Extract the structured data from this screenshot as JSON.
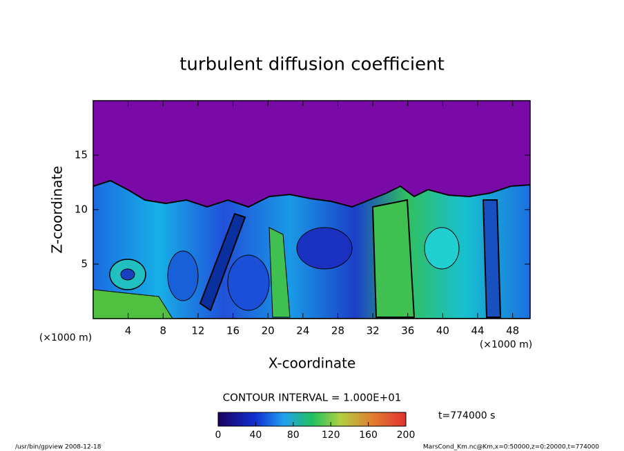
{
  "chart_data": {
    "type": "contour",
    "title": "turbulent diffusion coefficient",
    "x_label": "X-coordinate",
    "y_label": "Z-coordinate",
    "x_unit": "(×1000 m)",
    "xlim": [
      0,
      50
    ],
    "xticks": [
      4,
      8,
      12,
      16,
      20,
      24,
      28,
      32,
      36,
      40,
      44,
      48
    ],
    "ylim": [
      0,
      20
    ],
    "yticks": [
      5,
      10,
      15
    ],
    "contour_interval": "CONTOUR INTERVAL = 1.000E+01",
    "colorbar_lim": [
      0,
      200
    ],
    "colorbar_ticks": [
      0,
      40,
      80,
      120,
      160,
      200
    ],
    "time_label": "t=774000 s",
    "footer_left": "/usr/bin/gpview   2008-12-18",
    "footer_right": "MarsCond_Km.nc@Km,x=0:50000,z=0:20000,t=774000"
  }
}
